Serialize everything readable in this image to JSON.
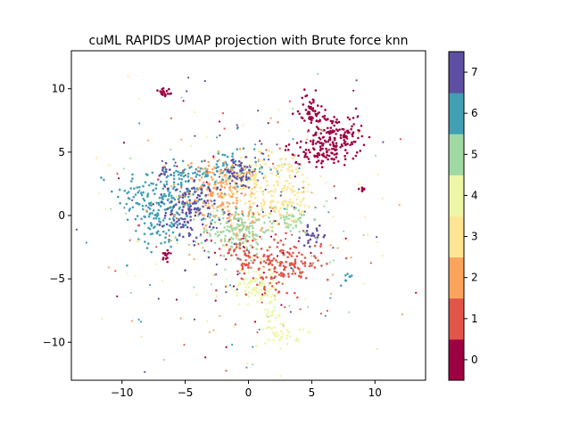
{
  "chart_data": {
    "type": "scatter",
    "title": "cuML RAPIDS UMAP projection with Brute force knn",
    "xlabel": "",
    "ylabel": "",
    "xlim": [
      -14,
      14
    ],
    "ylim": [
      -13,
      13
    ],
    "x_ticks": [
      -10,
      -5,
      0,
      5,
      10
    ],
    "y_ticks": [
      -10,
      -5,
      0,
      5,
      10
    ],
    "grid": false,
    "legend": "none",
    "colorbar": {
      "placement": "right",
      "range": [
        -0.5,
        7.5
      ],
      "ticks": [
        0,
        1,
        2,
        3,
        4,
        5,
        6,
        7
      ],
      "colors": [
        "#9e0142",
        "#e25549",
        "#fba45e",
        "#fee593",
        "#eef7a7",
        "#a1d9a3",
        "#439fb4",
        "#5e4fa2"
      ]
    },
    "clusters": [
      {
        "label": 0,
        "center": [
          7.0,
          6.2
        ],
        "spread": [
          1.0,
          0.9
        ],
        "weight": 140
      },
      {
        "label": 0,
        "center": [
          5.0,
          8.2
        ],
        "spread": [
          0.5,
          0.7
        ],
        "weight": 60
      },
      {
        "label": 0,
        "center": [
          5.2,
          5.0
        ],
        "spread": [
          1.1,
          0.5
        ],
        "weight": 70
      },
      {
        "label": 0,
        "center": [
          -6.6,
          9.7
        ],
        "spread": [
          0.3,
          0.25
        ],
        "weight": 20
      },
      {
        "label": 0,
        "center": [
          -6.5,
          -3.2
        ],
        "spread": [
          0.2,
          0.4
        ],
        "weight": 12
      },
      {
        "label": 0,
        "center": [
          8.8,
          2.0
        ],
        "spread": [
          0.2,
          0.15
        ],
        "weight": 8
      },
      {
        "label": 1,
        "center": [
          2.6,
          -3.8
        ],
        "spread": [
          1.6,
          1.0
        ],
        "weight": 170
      },
      {
        "label": 1,
        "center": [
          -0.5,
          -3.0
        ],
        "spread": [
          0.8,
          0.6
        ],
        "weight": 40
      },
      {
        "label": 2,
        "center": [
          -2.2,
          2.0
        ],
        "spread": [
          1.4,
          1.2
        ],
        "weight": 170
      },
      {
        "label": 2,
        "center": [
          -0.5,
          -0.5
        ],
        "spread": [
          0.8,
          0.8
        ],
        "weight": 40
      },
      {
        "label": 3,
        "center": [
          2.5,
          2.0
        ],
        "spread": [
          1.4,
          1.5
        ],
        "weight": 150
      },
      {
        "label": 3,
        "center": [
          -0.2,
          3.0
        ],
        "spread": [
          0.8,
          1.0
        ],
        "weight": 50
      },
      {
        "label": 4,
        "center": [
          0.5,
          -5.6
        ],
        "spread": [
          0.9,
          0.8
        ],
        "weight": 90
      },
      {
        "label": 4,
        "center": [
          2.7,
          -9.2
        ],
        "spread": [
          0.7,
          0.6
        ],
        "weight": 40
      },
      {
        "label": 4,
        "center": [
          1.8,
          -7.5
        ],
        "spread": [
          0.25,
          1.0
        ],
        "weight": 25
      },
      {
        "label": 5,
        "center": [
          -1.0,
          -1.2
        ],
        "spread": [
          1.3,
          0.9
        ],
        "weight": 140
      },
      {
        "label": 5,
        "center": [
          3.2,
          -0.2
        ],
        "spread": [
          0.9,
          0.6
        ],
        "weight": 60
      },
      {
        "label": 6,
        "center": [
          -6.5,
          1.5
        ],
        "spread": [
          2.0,
          1.3
        ],
        "weight": 200
      },
      {
        "label": 6,
        "center": [
          -2.0,
          3.6
        ],
        "spread": [
          1.8,
          0.7
        ],
        "weight": 100
      },
      {
        "label": 6,
        "center": [
          -7.0,
          -0.8
        ],
        "spread": [
          0.9,
          0.9
        ],
        "weight": 60
      },
      {
        "label": 6,
        "center": [
          7.8,
          -5.0
        ],
        "spread": [
          0.3,
          0.3
        ],
        "weight": 8
      },
      {
        "label": 7,
        "center": [
          -4.5,
          0.3
        ],
        "spread": [
          1.0,
          1.2
        ],
        "weight": 120
      },
      {
        "label": 7,
        "center": [
          -0.8,
          3.3
        ],
        "spread": [
          0.8,
          0.6
        ],
        "weight": 60
      },
      {
        "label": 7,
        "center": [
          5.2,
          -1.6
        ],
        "spread": [
          0.5,
          0.35
        ],
        "weight": 25
      },
      {
        "label": 7,
        "center": [
          -6.8,
          3.4
        ],
        "spread": [
          0.3,
          0.3
        ],
        "weight": 12
      }
    ],
    "outlier_count": 380
  }
}
